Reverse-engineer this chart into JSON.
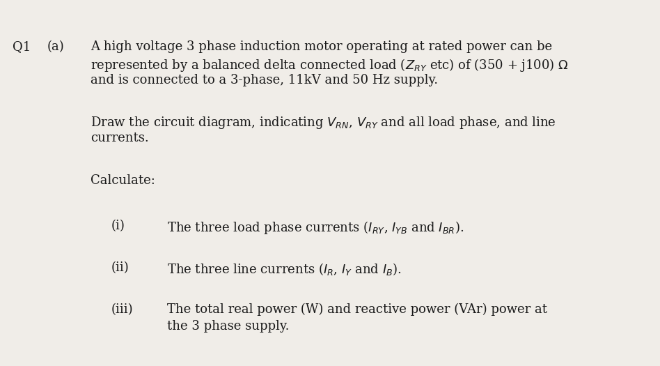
{
  "background_color": "#f0ede8",
  "text_color": "#1a1a1a",
  "q_label": "Q1",
  "a_label": "(a)",
  "para1_line1": "A high voltage 3 phase induction motor operating at rated power can be",
  "para1_line2": "represented by a balanced delta connected load ($Z_{RY}$ etc) of (350 + j100) $\\Omega$",
  "para1_line3": "and is connected to a 3-phase, 11kV and 50 Hz supply.",
  "para2_line1": "Draw the circuit diagram, indicating $V_{RN}$, $V_{RY}$ and all load phase, and line",
  "para2_line2": "currents.",
  "para3": "Calculate:",
  "item_i_label": "(i)",
  "item_i_text": "The three load phase currents ($I_{RY}$, $I_{YB}$ and $I_{BR}$).",
  "item_ii_label": "(ii)",
  "item_ii_text": "The three line currents ($I_{R}$, $I_{Y}$ and $I_{B}$).",
  "item_iii_label": "(iii)",
  "item_iii_text1": "The total real power (W) and reactive power (VAr) power at",
  "item_iii_text2": "the 3 phase supply.",
  "font_size": 13.0,
  "font_family": "DejaVu Serif"
}
